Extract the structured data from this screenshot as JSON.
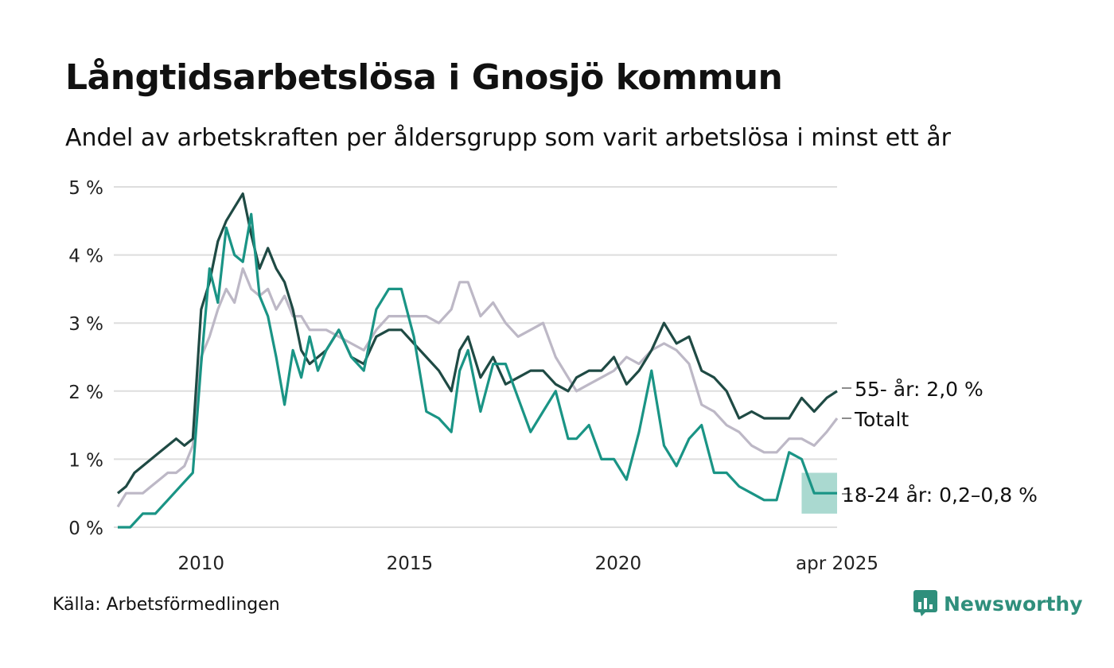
{
  "title": "Långtidsarbetslösa i Gnosjö kommun",
  "subtitle": "Andel av arbetskraften per åldersgrupp som varit arbetslösa i minst ett år",
  "source": "Källa: Arbetsförmedlingen",
  "brand": {
    "name": "Newsworthy",
    "icon": "newsworthy-logo-icon",
    "color": "#2f8f7c"
  },
  "chart_data": {
    "type": "line",
    "title": "Långtidsarbetslösa i Gnosjö kommun",
    "subtitle": "Andel av arbetskraften per åldersgrupp som varit arbetslösa i minst ett år",
    "ylim": [
      0,
      5
    ],
    "xlim": [
      2008.0,
      2025.25
    ],
    "y_ticks": [
      0,
      1,
      2,
      3,
      4,
      5
    ],
    "y_tick_labels": [
      "0 %",
      "1 %",
      "2 %",
      "3 %",
      "4 %",
      "5 %"
    ],
    "x_ticks": [
      2010,
      2015,
      2020,
      2025.25
    ],
    "x_tick_labels": [
      "2010",
      "2015",
      "2020",
      "apr 2025"
    ],
    "grid": true,
    "series": [
      {
        "name": "Totalt",
        "label": "Totalt",
        "color": "#bdb8c6",
        "x": [
          2008.0,
          2008.2,
          2008.4,
          2008.6,
          2008.8,
          2009.0,
          2009.2,
          2009.4,
          2009.6,
          2009.8,
          2010.0,
          2010.2,
          2010.4,
          2010.6,
          2010.8,
          2011.0,
          2011.2,
          2011.4,
          2011.6,
          2011.8,
          2012.0,
          2012.2,
          2012.4,
          2012.6,
          2012.8,
          2013.0,
          2013.3,
          2013.6,
          2013.9,
          2014.2,
          2014.5,
          2014.8,
          2015.1,
          2015.4,
          2015.7,
          2016.0,
          2016.2,
          2016.4,
          2016.7,
          2017.0,
          2017.3,
          2017.6,
          2017.9,
          2018.2,
          2018.5,
          2018.8,
          2019.0,
          2019.3,
          2019.6,
          2019.9,
          2020.2,
          2020.5,
          2020.8,
          2021.1,
          2021.4,
          2021.7,
          2022.0,
          2022.3,
          2022.6,
          2022.9,
          2023.2,
          2023.5,
          2023.8,
          2024.1,
          2024.4,
          2024.7,
          2025.0,
          2025.25
        ],
        "y": [
          0.3,
          0.5,
          0.5,
          0.5,
          0.6,
          0.7,
          0.8,
          0.8,
          0.9,
          1.2,
          2.5,
          2.8,
          3.2,
          3.5,
          3.3,
          3.8,
          3.5,
          3.4,
          3.5,
          3.2,
          3.4,
          3.1,
          3.1,
          2.9,
          2.9,
          2.9,
          2.8,
          2.7,
          2.6,
          2.9,
          3.1,
          3.1,
          3.1,
          3.1,
          3.0,
          3.2,
          3.6,
          3.6,
          3.1,
          3.3,
          3.0,
          2.8,
          2.9,
          3.0,
          2.5,
          2.2,
          2.0,
          2.1,
          2.2,
          2.3,
          2.5,
          2.4,
          2.6,
          2.7,
          2.6,
          2.4,
          1.8,
          1.7,
          1.5,
          1.4,
          1.2,
          1.1,
          1.1,
          1.3,
          1.3,
          1.2,
          1.4,
          1.6
        ]
      },
      {
        "name": "55- år",
        "label": "55- år: 2,0 %",
        "color": "#1f4a44",
        "x": [
          2008.0,
          2008.2,
          2008.4,
          2008.6,
          2008.8,
          2009.0,
          2009.2,
          2009.4,
          2009.6,
          2009.8,
          2010.0,
          2010.2,
          2010.4,
          2010.6,
          2010.8,
          2011.0,
          2011.2,
          2011.4,
          2011.6,
          2011.8,
          2012.0,
          2012.2,
          2012.4,
          2012.6,
          2012.8,
          2013.0,
          2013.3,
          2013.6,
          2013.9,
          2014.2,
          2014.5,
          2014.8,
          2015.1,
          2015.4,
          2015.7,
          2016.0,
          2016.2,
          2016.4,
          2016.7,
          2017.0,
          2017.3,
          2017.6,
          2017.9,
          2018.2,
          2018.5,
          2018.8,
          2019.0,
          2019.3,
          2019.6,
          2019.9,
          2020.2,
          2020.5,
          2020.8,
          2021.1,
          2021.4,
          2021.7,
          2022.0,
          2022.3,
          2022.6,
          2022.9,
          2023.2,
          2023.5,
          2023.8,
          2024.1,
          2024.4,
          2024.7,
          2025.0,
          2025.25
        ],
        "y": [
          0.5,
          0.6,
          0.8,
          0.9,
          1.0,
          1.1,
          1.2,
          1.3,
          1.2,
          1.3,
          3.2,
          3.6,
          4.2,
          4.5,
          4.7,
          4.9,
          4.3,
          3.8,
          4.1,
          3.8,
          3.6,
          3.2,
          2.6,
          2.4,
          2.5,
          2.6,
          2.9,
          2.5,
          2.4,
          2.8,
          2.9,
          2.9,
          2.7,
          2.5,
          2.3,
          2.0,
          2.6,
          2.8,
          2.2,
          2.5,
          2.1,
          2.2,
          2.3,
          2.3,
          2.1,
          2.0,
          2.2,
          2.3,
          2.3,
          2.5,
          2.1,
          2.3,
          2.6,
          3.0,
          2.7,
          2.8,
          2.3,
          2.2,
          2.0,
          1.6,
          1.7,
          1.6,
          1.6,
          1.6,
          1.9,
          1.7,
          1.9,
          2.0
        ]
      },
      {
        "name": "18-24 år",
        "label": "18-24 år: 0,2–0,8 %",
        "color": "#1a9485",
        "x": [
          2008.0,
          2008.3,
          2008.6,
          2008.9,
          2009.2,
          2009.5,
          2009.8,
          2010.0,
          2010.2,
          2010.4,
          2010.6,
          2010.8,
          2011.0,
          2011.2,
          2011.4,
          2011.6,
          2011.8,
          2012.0,
          2012.2,
          2012.4,
          2012.6,
          2012.8,
          2013.0,
          2013.3,
          2013.6,
          2013.9,
          2014.2,
          2014.5,
          2014.8,
          2015.1,
          2015.4,
          2015.7,
          2016.0,
          2016.2,
          2016.4,
          2016.7,
          2017.0,
          2017.3,
          2017.6,
          2017.9,
          2018.2,
          2018.5,
          2018.8,
          2019.0,
          2019.3,
          2019.6,
          2019.9,
          2020.2,
          2020.5,
          2020.8,
          2021.1,
          2021.4,
          2021.7,
          2022.0,
          2022.3,
          2022.6,
          2022.9,
          2023.2,
          2023.5,
          2023.8,
          2024.1,
          2024.4,
          2024.7,
          2025.0,
          2025.25
        ],
        "y": [
          0.0,
          0.0,
          0.2,
          0.2,
          0.4,
          0.6,
          0.8,
          2.4,
          3.8,
          3.3,
          4.4,
          4.0,
          3.9,
          4.6,
          3.4,
          3.1,
          2.5,
          1.8,
          2.6,
          2.2,
          2.8,
          2.3,
          2.6,
          2.9,
          2.5,
          2.3,
          3.2,
          3.5,
          3.5,
          2.8,
          1.7,
          1.6,
          1.4,
          2.3,
          2.6,
          1.7,
          2.4,
          2.4,
          1.9,
          1.4,
          1.7,
          2.0,
          1.3,
          1.3,
          1.5,
          1.0,
          1.0,
          0.7,
          1.4,
          2.3,
          1.2,
          0.9,
          1.3,
          1.5,
          0.8,
          0.8,
          0.6,
          0.5,
          0.4,
          0.4,
          1.1,
          1.0,
          0.5,
          0.5,
          0.5
        ]
      }
    ],
    "range_band": {
      "series": "18-24 år",
      "x": [
        2024.4,
        2025.25
      ],
      "low": 0.2,
      "high": 0.8,
      "color": "#9bd2c8"
    }
  }
}
